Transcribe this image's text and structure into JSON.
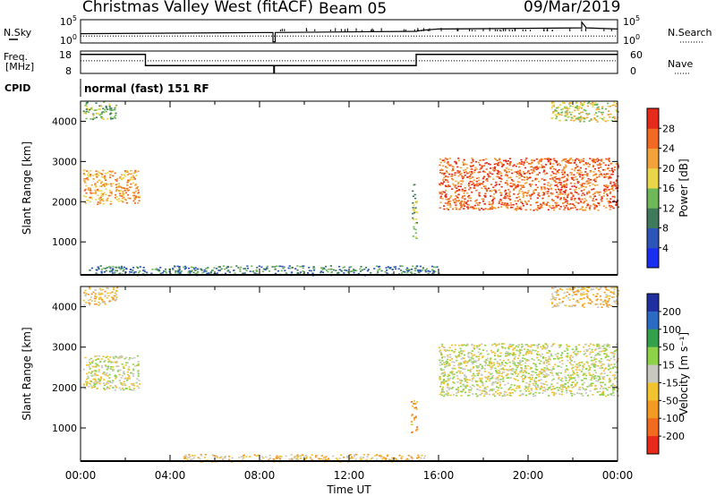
{
  "header": {
    "station": "Christmas Valley West (fitACF)",
    "beam": "Beam 05",
    "date": "09/Mar/2019"
  },
  "chart_data": [
    {
      "type": "line",
      "panel": "noise",
      "labels": {
        "left": "N.Sky",
        "right": "N.Search"
      },
      "left_ticks": [
        "10^5",
        "10^0"
      ],
      "right_ticks": [
        "10^5",
        "10^0"
      ],
      "series": [
        {
          "name": "N.Sky",
          "style": "solid",
          "x": [
            0,
            8.6,
            8.6,
            8.7,
            8.7,
            15,
            15.3,
            16,
            22.4,
            22.4,
            22.6,
            24
          ],
          "y": [
            0.4,
            0.45,
            0.05,
            0.05,
            0.45,
            0.5,
            0.55,
            0.6,
            0.65,
            0.9,
            0.65,
            0.6
          ]
        },
        {
          "name": "N.Search",
          "style": "dotted",
          "x": [
            0,
            24
          ],
          "y": [
            0.3,
            0.3
          ]
        }
      ]
    },
    {
      "type": "line",
      "panel": "frequency",
      "labels": {
        "left": "Freq. [MHz]",
        "right": "Nave"
      },
      "left_ticks": [
        "18",
        "8"
      ],
      "left_range": [
        8,
        18
      ],
      "right_ticks": [
        "60",
        "0"
      ],
      "right_range": [
        0,
        60
      ],
      "series": [
        {
          "name": "Freq.",
          "style": "solid",
          "x": [
            0,
            2.9,
            2.9,
            15,
            15,
            24
          ],
          "y": [
            16.5,
            16.5,
            11.5,
            11.5,
            16.5,
            16.5
          ]
        },
        {
          "name": "Nave",
          "style": "dotted",
          "x": [
            0,
            24
          ],
          "y": [
            34,
            34
          ]
        }
      ]
    },
    {
      "type": "text",
      "panel": "cpid",
      "label": "CPID",
      "text": "normal (fast) 151 RF"
    },
    {
      "type": "heatmap",
      "panel": "power",
      "xlabel": "",
      "ylabel": "Slant Range [km]",
      "xlim": [
        0,
        24
      ],
      "ylim": [
        180,
        4500
      ],
      "y_ticks": [
        1000,
        2000,
        3000,
        4000
      ],
      "colorbar": {
        "label": "Power [dB]",
        "ticks": [
          "4",
          "8",
          "12",
          "16",
          "20",
          "24",
          "28"
        ],
        "colors": [
          "#1a2ef0",
          "#2d55b8",
          "#3f7a5c",
          "#6fb85a",
          "#e9d64a",
          "#f2a23a",
          "#f06a23",
          "#e62a1b"
        ]
      },
      "regions": [
        {
          "x": [
            0.1,
            2.6
          ],
          "y": [
            1950,
            2800
          ],
          "level": 5
        },
        {
          "x": [
            0.1,
            1.6
          ],
          "y": [
            4050,
            4500
          ],
          "level": 3
        },
        {
          "x": [
            16.0,
            24.0
          ],
          "y": [
            1800,
            3100
          ],
          "level": 6
        },
        {
          "x": [
            14.8,
            15.0
          ],
          "y": [
            1000,
            2500
          ],
          "level": 3
        },
        {
          "x": [
            0.3,
            16.0
          ],
          "y": [
            180,
            420
          ],
          "level": 2
        },
        {
          "x": [
            21.0,
            24.0
          ],
          "y": [
            4000,
            4500
          ],
          "level": 4
        }
      ]
    },
    {
      "type": "heatmap",
      "panel": "velocity",
      "xlabel": "Time UT",
      "ylabel": "Slant Range [km]",
      "xlim": [
        0,
        24
      ],
      "ylim": [
        180,
        4500
      ],
      "x_ticks": [
        "00:00",
        "04:00",
        "08:00",
        "12:00",
        "16:00",
        "20:00",
        "00:00"
      ],
      "y_ticks": [
        1000,
        2000,
        3000,
        4000
      ],
      "colorbar": {
        "label": "Velocity [m s⁻¹]",
        "ticks": [
          "200",
          "100",
          "50",
          "15",
          "-15",
          "-50",
          "-100",
          "-200"
        ],
        "colors": [
          "#1f2fa0",
          "#2c6bc4",
          "#34a04a",
          "#8ed24a",
          "#c8c8c0",
          "#f2c330",
          "#f29a22",
          "#f06a20",
          "#e82a1a"
        ]
      },
      "regions": [
        {
          "x": [
            0.1,
            2.6
          ],
          "y": [
            1950,
            2800
          ],
          "level": 4
        },
        {
          "x": [
            0.1,
            1.6
          ],
          "y": [
            4050,
            4500
          ],
          "level": 5
        },
        {
          "x": [
            16.0,
            24.0
          ],
          "y": [
            1800,
            3100
          ],
          "level": 4
        },
        {
          "x": [
            14.75,
            15.0
          ],
          "y": [
            820,
            1700
          ],
          "level": 6
        },
        {
          "x": [
            4.5,
            15.5
          ],
          "y": [
            180,
            360
          ],
          "level": 5
        },
        {
          "x": [
            21.0,
            24.0
          ],
          "y": [
            4000,
            4500
          ],
          "level": 5
        }
      ]
    }
  ]
}
